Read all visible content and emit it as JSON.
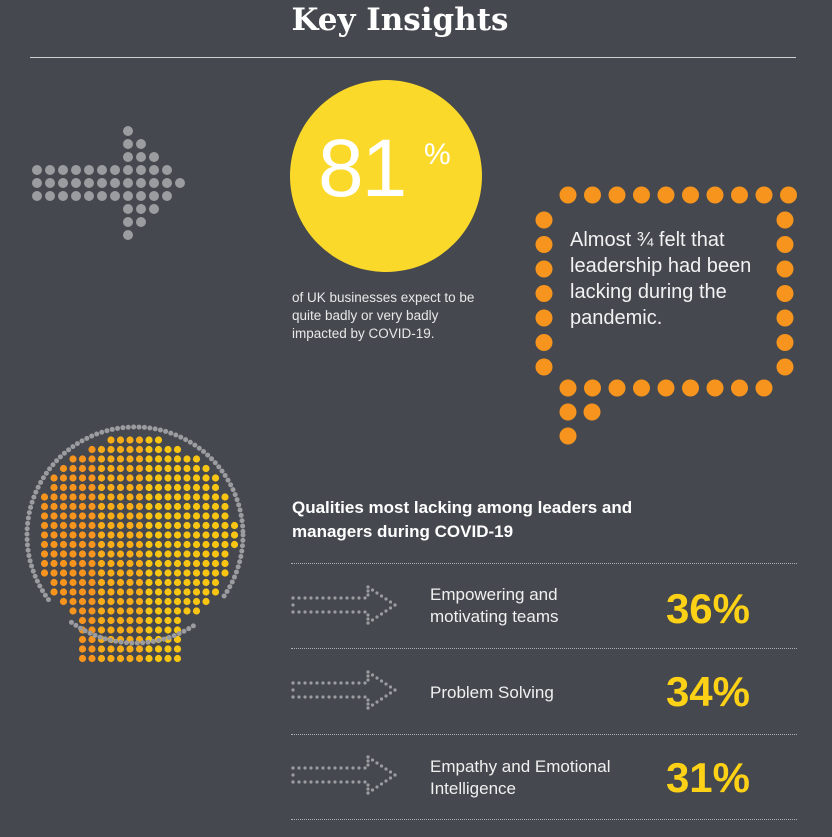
{
  "header": {
    "title": "Key Insights"
  },
  "stat": {
    "value": "81",
    "unit": "%",
    "caption": "of UK businesses expect to be quite badly or very badly impacted by COVID-19."
  },
  "quote": {
    "text": "Almost ¾ felt that leadership had been lacking during the pandemic."
  },
  "qualities": {
    "heading": "Qualities most lacking among leaders and managers during COVID-19",
    "items": [
      {
        "label": "Empowering and motivating teams",
        "percent": "36%"
      },
      {
        "label": "Problem Solving",
        "percent": "34%"
      },
      {
        "label": "Empathy and Emotional Intelligence",
        "percent": "31%"
      }
    ]
  },
  "colors": {
    "background": "#45484e",
    "yellow": "#fbd92a",
    "orange": "#f7941d",
    "grey_dot": "#9a9c9f",
    "percent_yellow": "#fcd116"
  },
  "icons": [
    "dotted-arrow-icon",
    "speech-bubble-icon",
    "dotted-head-icon",
    "outline-arrow-icon"
  ]
}
